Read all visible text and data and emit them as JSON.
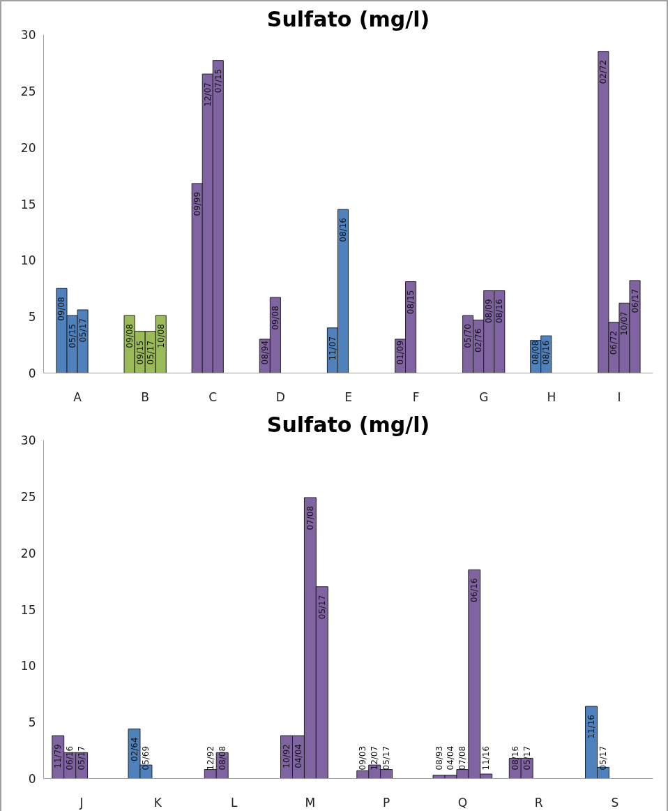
{
  "chart_data": [
    {
      "type": "bar",
      "title": "Sulfato (mg/l)",
      "categories": [
        "A",
        "B",
        "C",
        "D",
        "E",
        "F",
        "G",
        "H",
        "I"
      ],
      "ylim": [
        0,
        30
      ],
      "yticks": [
        0,
        5,
        10,
        15,
        20,
        25,
        30
      ],
      "grid": false,
      "series": [
        {
          "values": [
            7.5,
            5.1,
            16.8,
            3.0,
            4.0,
            3.0,
            5.1,
            2.9,
            28.5
          ],
          "colors": [
            "#4f81bd",
            "#9bbb59",
            "#8064a2",
            "#8064a2",
            "#4f81bd",
            "#8064a2",
            "#8064a2",
            "#4f81bd",
            "#8064a2"
          ]
        },
        {
          "values": [
            5.1,
            3.7,
            26.5,
            6.7,
            14.5,
            8.1,
            4.7,
            3.3,
            4.5
          ],
          "colors": [
            "#4f81bd",
            "#9bbb59",
            "#8064a2",
            "#8064a2",
            "#4f81bd",
            "#8064a2",
            "#8064a2",
            "#4f81bd",
            "#8064a2"
          ]
        },
        {
          "values": [
            5.6,
            3.7,
            27.7,
            null,
            null,
            null,
            7.3,
            null,
            6.2
          ],
          "colors": [
            "#4f81bd",
            "#9bbb59",
            "#8064a2",
            null,
            null,
            null,
            "#8064a2",
            null,
            "#8064a2"
          ]
        },
        {
          "values": [
            null,
            5.1,
            null,
            null,
            null,
            null,
            7.3,
            null,
            8.2
          ],
          "colors": [
            null,
            "#9bbb59",
            null,
            null,
            null,
            null,
            "#8064a2",
            null,
            "#8064a2"
          ]
        }
      ],
      "annotations": [
        "09/08",
        "05/15",
        "05/17",
        "09/08",
        "09/15",
        "05/17",
        "10/08",
        "09/99",
        "12/07",
        "07/15",
        "08/94",
        "09/08",
        "11/07",
        "08/16",
        "01/09",
        "08/15",
        "05/70",
        "02/76",
        "08/09",
        "08/16",
        "08/08",
        "08/16",
        "02/72",
        "06/72",
        "10/07",
        "06/17"
      ]
    },
    {
      "type": "bar",
      "title": "Sulfato (mg/l)",
      "categories": [
        "J",
        "K",
        "L",
        "M",
        "P",
        "Q",
        "R",
        "S"
      ],
      "ylim": [
        0,
        30
      ],
      "yticks": [
        0,
        5,
        10,
        15,
        20,
        25,
        30
      ],
      "grid": false,
      "series": [
        {
          "values": [
            3.8,
            4.4,
            0.8,
            3.8,
            0.7,
            0.3,
            1.8,
            6.4
          ],
          "colors": [
            "#8064a2",
            "#4f81bd",
            "#8064a2",
            "#8064a2",
            "#8064a2",
            "#8064a2",
            "#8064a2",
            "#4f81bd"
          ]
        },
        {
          "values": [
            2.3,
            1.2,
            2.3,
            3.8,
            1.2,
            0.3,
            1.8,
            1.0
          ],
          "colors": [
            "#8064a2",
            "#4f81bd",
            "#8064a2",
            "#8064a2",
            "#8064a2",
            "#8064a2",
            "#8064a2",
            "#4f81bd"
          ]
        },
        {
          "values": [
            2.3,
            null,
            null,
            24.9,
            0.8,
            0.8,
            null,
            null
          ],
          "colors": [
            "#8064a2",
            null,
            null,
            "#8064a2",
            "#8064a2",
            "#8064a2",
            null,
            null
          ]
        },
        {
          "values": [
            null,
            null,
            null,
            17.0,
            null,
            18.5,
            null,
            null
          ],
          "colors": [
            null,
            null,
            null,
            "#8064a2",
            null,
            "#8064a2",
            null,
            null
          ]
        },
        {
          "values": [
            null,
            null,
            null,
            null,
            null,
            0.4,
            null,
            null
          ],
          "colors": [
            null,
            null,
            null,
            null,
            null,
            "#8064a2",
            null,
            null
          ]
        }
      ],
      "annotations": [
        "11/79",
        "06/16",
        "05/17",
        "02/64",
        "05/69",
        "12/92",
        "08/08",
        "10/92",
        "04/04",
        "07/08",
        "05/17",
        "09/03",
        "12/07",
        "05/17",
        "08/93",
        "04/04",
        "07/08",
        "06/16",
        "11/16",
        "08/16",
        "05/17",
        "11/16",
        "05/17"
      ]
    }
  ]
}
